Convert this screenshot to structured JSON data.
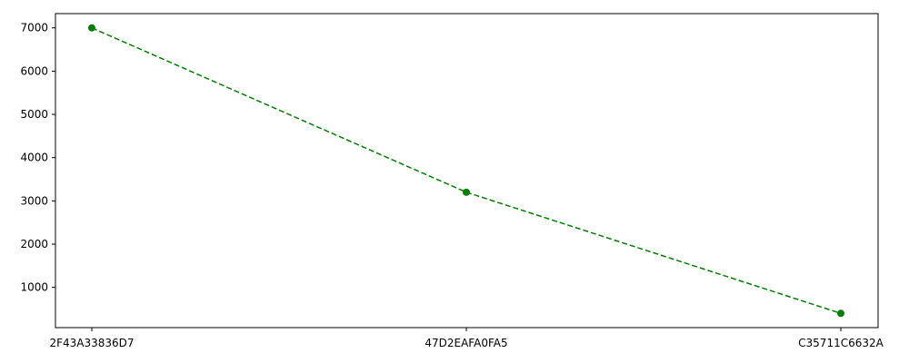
{
  "chart_data": {
    "type": "line",
    "categories": [
      "2F43A33836D7",
      "47D2EAFA0FA5",
      "C35711C6632A"
    ],
    "series": [
      {
        "values": [
          7000,
          3200,
          400
        ],
        "color": "#008000",
        "line_style": "dashed",
        "marker": "circle"
      }
    ],
    "y_ticks": [
      1000,
      2000,
      3000,
      4000,
      5000,
      6000,
      7000
    ],
    "ylim": [
      70,
      7330
    ],
    "grid": false,
    "title": "",
    "xlabel": "",
    "ylabel": ""
  }
}
